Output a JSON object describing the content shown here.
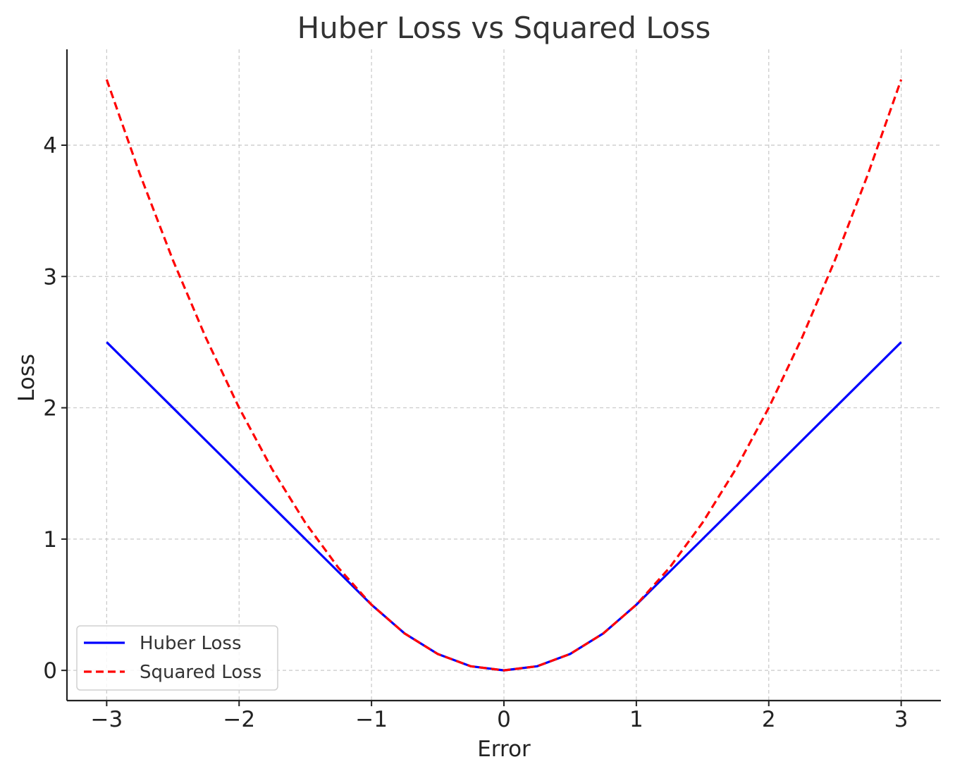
{
  "chart_data": {
    "type": "line",
    "title": "Huber Loss vs Squared Loss",
    "xlabel": "Error",
    "ylabel": "Loss",
    "xlim": [
      -3.3,
      3.3
    ],
    "ylim": [
      -0.23,
      4.73
    ],
    "x_ticks": [
      {
        "value": -3,
        "label": "−3"
      },
      {
        "value": -2,
        "label": "−2"
      },
      {
        "value": -1,
        "label": "−1"
      },
      {
        "value": 0,
        "label": "0"
      },
      {
        "value": 1,
        "label": "1"
      },
      {
        "value": 2,
        "label": "2"
      },
      {
        "value": 3,
        "label": "3"
      }
    ],
    "y_ticks": [
      {
        "value": 0,
        "label": "0"
      },
      {
        "value": 1,
        "label": "1"
      },
      {
        "value": 2,
        "label": "2"
      },
      {
        "value": 3,
        "label": "3"
      },
      {
        "value": 4,
        "label": "4"
      }
    ],
    "grid": true,
    "grid_style": "dashed",
    "legend_position": "lower-left",
    "series": [
      {
        "name": "Huber Loss",
        "color": "#0000ff",
        "line_style": "solid",
        "x": [
          -3.0,
          -2.5,
          -2.0,
          -1.5,
          -1.0,
          -0.75,
          -0.5,
          -0.25,
          0.0,
          0.25,
          0.5,
          0.75,
          1.0,
          1.5,
          2.0,
          2.5,
          3.0
        ],
        "y": [
          2.5,
          2.0,
          1.5,
          1.0,
          0.5,
          0.28125,
          0.125,
          0.03125,
          0.0,
          0.03125,
          0.125,
          0.28125,
          0.5,
          1.0,
          1.5,
          2.0,
          2.5
        ]
      },
      {
        "name": "Squared Loss",
        "color": "#ff0000",
        "line_style": "dashed",
        "x": [
          -3.0,
          -2.75,
          -2.5,
          -2.25,
          -2.0,
          -1.75,
          -1.5,
          -1.25,
          -1.0,
          -0.75,
          -0.5,
          -0.25,
          0.0,
          0.25,
          0.5,
          0.75,
          1.0,
          1.25,
          1.5,
          1.75,
          2.0,
          2.25,
          2.5,
          2.75,
          3.0
        ],
        "y": [
          4.5,
          3.78125,
          3.125,
          2.53125,
          2.0,
          1.53125,
          1.125,
          0.78125,
          0.5,
          0.28125,
          0.125,
          0.03125,
          0.0,
          0.03125,
          0.125,
          0.28125,
          0.5,
          0.78125,
          1.125,
          1.53125,
          2.0,
          2.53125,
          3.125,
          3.78125,
          4.5
        ]
      }
    ]
  }
}
